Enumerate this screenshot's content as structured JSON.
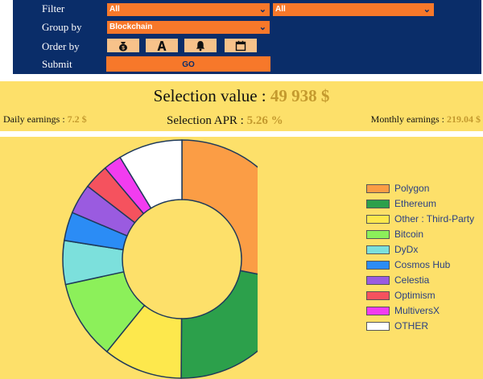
{
  "form": {
    "filter_label": "Filter",
    "filter_value_1": "All",
    "filter_value_2": "All",
    "group_by_label": "Group by",
    "group_by_value": "Blockchain",
    "order_by_label": "Order by",
    "order_icons": [
      "money-bag-icon",
      "letter-a-icon",
      "bell-icon",
      "calendar-icon"
    ],
    "submit_label": "Submit",
    "go_label": "GO"
  },
  "summary": {
    "selection_value_label": "Selection value :",
    "selection_value": "49 938 $",
    "daily_label": "Daily earnings :",
    "daily_value": "7.2 $",
    "apr_label": "Selection APR :",
    "apr_value": "5.26 %",
    "monthly_label": "Monthly earnings :",
    "monthly_value": "219.04 $"
  },
  "colors": {
    "form_background": "#0a2d69",
    "accent_orange": "#f7782a",
    "panel_yellow": "#fde06a",
    "value_gold": "#c49a2e"
  },
  "chart_data": {
    "type": "pie",
    "subtype": "donut",
    "labels": [
      "Polygon",
      "Ethereum",
      "Other : Third-Party",
      "Bitcoin",
      "DyDx",
      "Cosmos Hub",
      "Celestia",
      "Optimism",
      "MultiversX",
      "OTHER"
    ],
    "values": [
      27.5,
      21.5,
      10.5,
      10.5,
      5.8,
      3.8,
      4,
      3.3,
      2.4,
      8.5
    ],
    "colors": [
      "#fb9d45",
      "#2ca04b",
      "#fde84d",
      "#8cf05a",
      "#7ce0dc",
      "#2b8cf5",
      "#9a5be0",
      "#f5525e",
      "#f23cf0",
      "#ffffff"
    ],
    "legend_position": "right"
  }
}
